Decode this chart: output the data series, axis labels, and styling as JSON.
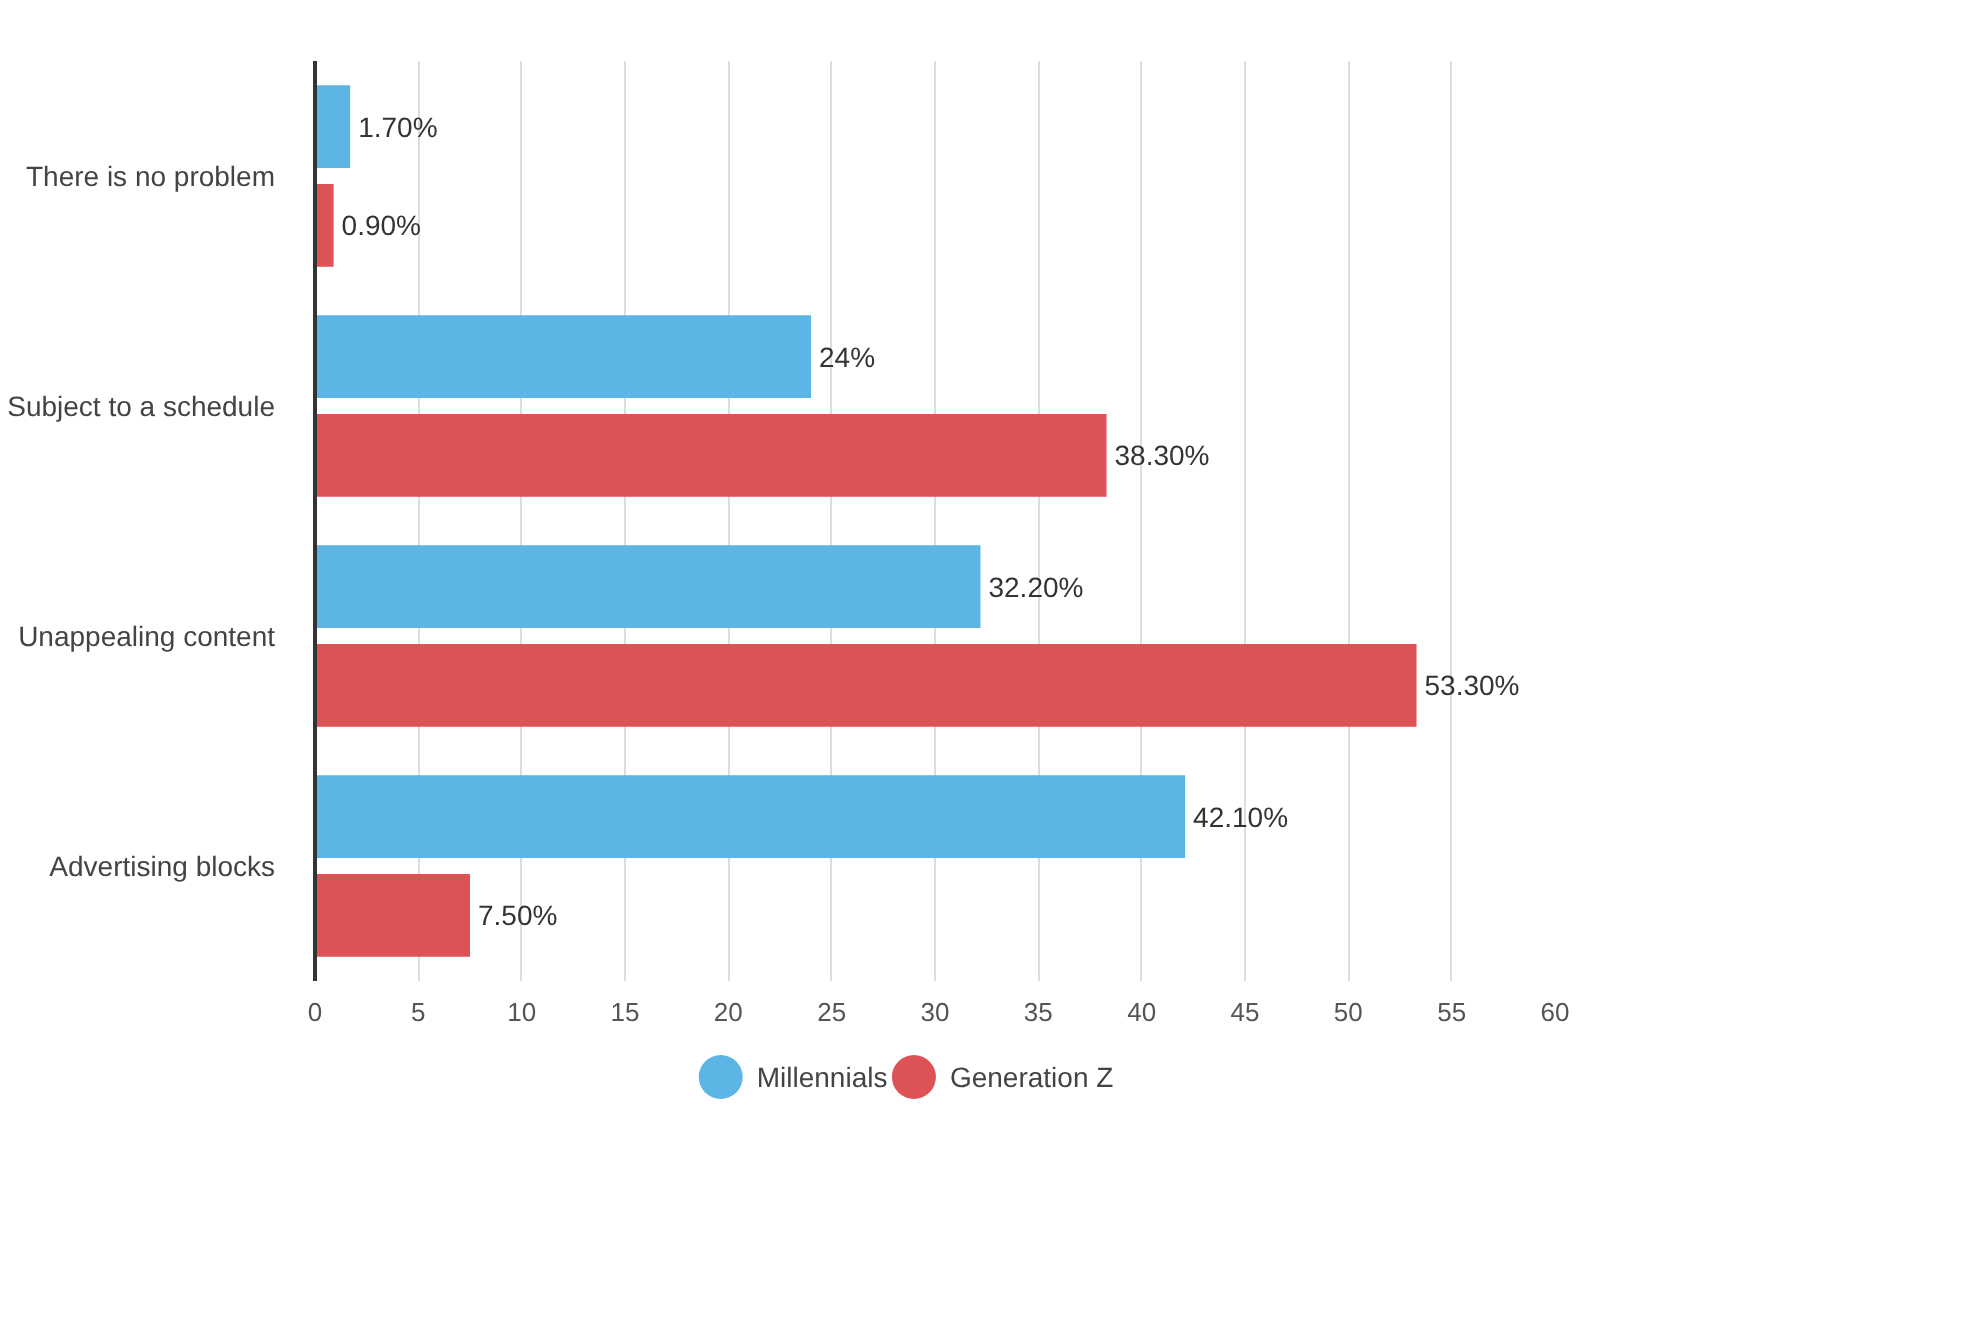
{
  "chart_data": {
    "type": "bar",
    "orientation": "horizontal",
    "categories": [
      "There is no problem",
      "Subject to a schedule",
      "Unappealing content",
      "Advertising blocks"
    ],
    "series": [
      {
        "name": "Millennials",
        "color": "#5db5e5",
        "values": [
          1.7,
          24,
          32.2,
          42.1
        ],
        "value_labels": [
          "1.70%",
          "24%",
          "32.20%",
          "42.10%"
        ]
      },
      {
        "name": "Generation Z",
        "color": "#dc5255",
        "values": [
          0.9,
          38.3,
          53.3,
          7.5
        ],
        "value_labels": [
          "0.90%",
          "38.30%",
          "53.30%",
          "7.50%"
        ]
      }
    ],
    "xlim": [
      0,
      60
    ],
    "xticks": [
      0,
      5,
      10,
      15,
      20,
      25,
      30,
      35,
      40,
      45,
      50,
      55,
      60
    ],
    "grid": "x",
    "legend": "bottom"
  }
}
